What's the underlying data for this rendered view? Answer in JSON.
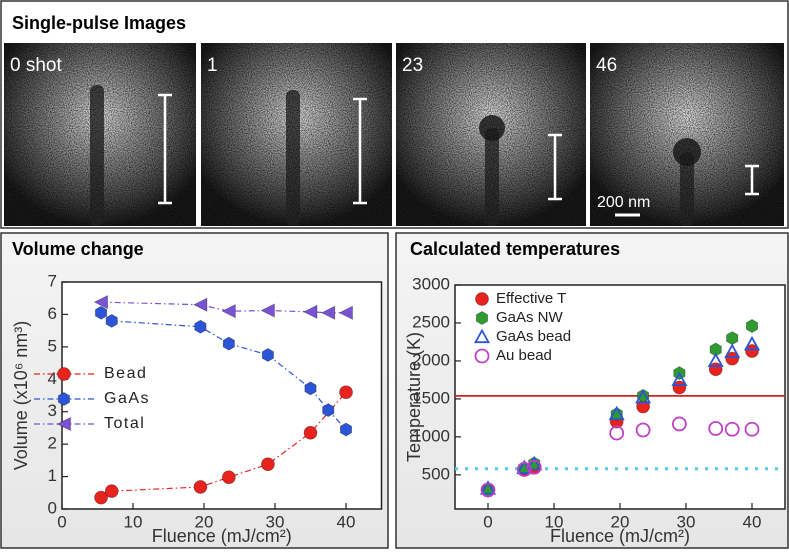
{
  "header": {
    "title": "Single-pulse Images"
  },
  "images": [
    {
      "label": "0 shot"
    },
    {
      "label": "1"
    },
    {
      "label": "23"
    },
    {
      "label": "46"
    }
  ],
  "scale_label": "200 nm",
  "chart_data": [
    {
      "type": "line",
      "title": "Volume change",
      "x_label": "Fluence (mJ/cm²)",
      "y_label": "Volume (x10⁶ nm³)",
      "xlim": [
        0,
        45
      ],
      "xticks": [
        0,
        10,
        20,
        30,
        40
      ],
      "ylim": [
        0,
        7
      ],
      "yticks": [
        0,
        1,
        2,
        3,
        4,
        5,
        6,
        7
      ],
      "line_style": "dashdot",
      "legend": "lower-left",
      "series": [
        {
          "name": "Bead",
          "color": "#e8231d",
          "marker": "circle",
          "filled": true,
          "x": [
            5.5,
            7,
            19.5,
            23.5,
            29,
            35,
            40
          ],
          "values": [
            0.35,
            0.55,
            0.68,
            0.98,
            1.38,
            2.35,
            3.6
          ]
        },
        {
          "name": "GaAs",
          "color": "#2b55d6",
          "marker": "hexagon",
          "filled": true,
          "x": [
            5.5,
            7,
            19.5,
            23.5,
            29,
            35,
            37.5,
            40
          ],
          "values": [
            6.05,
            5.8,
            5.62,
            5.1,
            4.75,
            3.72,
            3.05,
            2.45
          ]
        },
        {
          "name": "Total",
          "color": "#7a52d6",
          "marker": "triangle-left",
          "filled": true,
          "x": [
            5.5,
            19.5,
            23.5,
            29,
            35,
            37.5,
            40
          ],
          "values": [
            6.38,
            6.3,
            6.1,
            6.12,
            6.08,
            6.05,
            6.05
          ]
        }
      ]
    },
    {
      "type": "scatter",
      "title": "Calculated temperatures",
      "x_label": "Fluence (mJ/cm²)",
      "y_label": "Temperature (K)",
      "xlim": [
        -5,
        45
      ],
      "xticks": [
        0,
        10,
        20,
        30,
        40
      ],
      "ylim": [
        50,
        3000
      ],
      "yticks": [
        500,
        1000,
        1500,
        2000,
        2500,
        3000
      ],
      "legend": "upper-left",
      "hlines": [
        {
          "value": 1540,
          "color": "#d42020",
          "style": "solid"
        },
        {
          "value": 580,
          "color": "#55c8ee",
          "style": "dotted"
        }
      ],
      "series": [
        {
          "name": "Effective T",
          "color": "#e8231d",
          "marker": "circle",
          "filled": true,
          "x": [
            0,
            5.5,
            7,
            19.5,
            23.5,
            29,
            34.5,
            37,
            40
          ],
          "values": [
            300,
            580,
            600,
            1200,
            1400,
            1650,
            1890,
            2030,
            2130
          ]
        },
        {
          "name": "GaAs NW",
          "color": "#2f9a2f",
          "marker": "hexagon",
          "filled": true,
          "x": [
            0,
            5.5,
            7,
            19.5,
            23.5,
            29,
            34.5,
            37,
            40
          ],
          "values": [
            290,
            590,
            650,
            1300,
            1540,
            1840,
            2150,
            2300,
            2460
          ]
        },
        {
          "name": "GaAs bead",
          "color": "#2b55d6",
          "marker": "triangle",
          "filled": false,
          "x": [
            0,
            5.5,
            7,
            19.5,
            23.5,
            29,
            34.5,
            37,
            40
          ],
          "values": [
            320,
            590,
            640,
            1300,
            1520,
            1750,
            2000,
            2120,
            2220
          ]
        },
        {
          "name": "Au bead",
          "color": "#c040c8",
          "marker": "circle",
          "filled": false,
          "x": [
            0,
            5.5,
            7,
            19.5,
            23.5,
            29,
            34.5,
            37,
            40
          ],
          "values": [
            300,
            570,
            600,
            1050,
            1090,
            1170,
            1110,
            1100,
            1100
          ]
        }
      ]
    }
  ]
}
